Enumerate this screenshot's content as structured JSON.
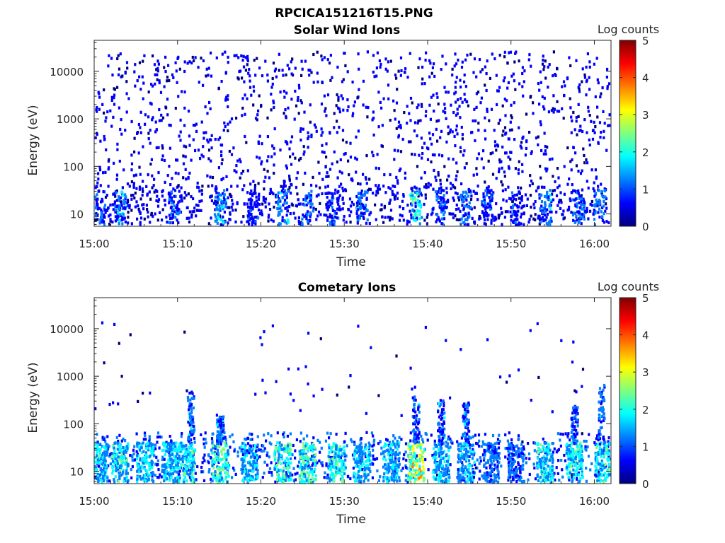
{
  "figure": {
    "title": "RPCICA151216T15.PNG"
  },
  "colormap": [
    "#00007f",
    "#0000ff",
    "#007fff",
    "#00ffff",
    "#7fff7f",
    "#ffff00",
    "#ff7f00",
    "#ff0000",
    "#7f0000"
  ],
  "chart_data": [
    {
      "type": "heatmap",
      "title": "Solar Wind Ions",
      "xlabel": "Time",
      "ylabel": "Energy (eV)",
      "x_range_minutes": [
        0,
        62
      ],
      "x_ticks": [
        {
          "t": 0,
          "label": "15:00"
        },
        {
          "t": 10,
          "label": "15:10"
        },
        {
          "t": 20,
          "label": "15:20"
        },
        {
          "t": 30,
          "label": "15:30"
        },
        {
          "t": 40,
          "label": "15:40"
        },
        {
          "t": 50,
          "label": "15:50"
        },
        {
          "t": 60,
          "label": "16:00"
        }
      ],
      "y_scale": "log",
      "y_range": [
        5.5,
        45000
      ],
      "y_ticks": [
        {
          "v": 10,
          "label": "10"
        },
        {
          "v": 100,
          "label": "100"
        },
        {
          "v": 1000,
          "label": "1000"
        },
        {
          "v": 10000,
          "label": "10000"
        }
      ],
      "colorbar": {
        "label": "Log counts",
        "range": [
          0,
          5
        ],
        "ticks": [
          "0",
          "1",
          "2",
          "3",
          "4",
          "5"
        ]
      },
      "pattern": "sparse counts (log 0–1) at all energies, brighter bursts (log 1–2.5) below ~40 eV",
      "bursts": [
        {
          "t": 0.5,
          "level": 1.3
        },
        {
          "t": 3.0,
          "level": 1.6
        },
        {
          "t": 9.5,
          "level": 1.1
        },
        {
          "t": 15.0,
          "level": 1.8
        },
        {
          "t": 19.0,
          "level": 1.0
        },
        {
          "t": 22.5,
          "level": 1.7
        },
        {
          "t": 25.5,
          "level": 1.5
        },
        {
          "t": 28.5,
          "level": 1.1
        },
        {
          "t": 32.0,
          "level": 1.6
        },
        {
          "t": 38.5,
          "level": 2.4
        },
        {
          "t": 41.5,
          "level": 1.2
        },
        {
          "t": 44.5,
          "level": 1.3
        },
        {
          "t": 47.0,
          "level": 1.1
        },
        {
          "t": 50.5,
          "level": 1.0
        },
        {
          "t": 54.0,
          "level": 1.6
        },
        {
          "t": 58.0,
          "level": 1.4
        },
        {
          "t": 60.5,
          "level": 1.5
        }
      ]
    },
    {
      "type": "heatmap",
      "title": "Cometary Ions",
      "xlabel": "Time",
      "ylabel": "Energy (eV)",
      "x_range_minutes": [
        0,
        62
      ],
      "x_ticks": [
        {
          "t": 0,
          "label": "15:00"
        },
        {
          "t": 10,
          "label": "15:10"
        },
        {
          "t": 20,
          "label": "15:20"
        },
        {
          "t": 30,
          "label": "15:30"
        },
        {
          "t": 40,
          "label": "15:40"
        },
        {
          "t": 50,
          "label": "15:50"
        },
        {
          "t": 60,
          "label": "16:00"
        }
      ],
      "y_scale": "log",
      "y_range": [
        5.5,
        45000
      ],
      "y_ticks": [
        {
          "v": 10,
          "label": "10"
        },
        {
          "v": 100,
          "label": "100"
        },
        {
          "v": 1000,
          "label": "1000"
        },
        {
          "v": 10000,
          "label": "10000"
        }
      ],
      "colorbar": {
        "label": "Log counts",
        "range": [
          0,
          5
        ],
        "ticks": [
          "0",
          "1",
          "2",
          "3",
          "4",
          "5"
        ]
      },
      "pattern": "strong bands (log 1–3.5) between 6 and 45 eV with repeated bursts, plumes up to ~600 eV, very sparse above",
      "bursts": [
        {
          "t": 0.5,
          "level": 2.3
        },
        {
          "t": 3.0,
          "level": 2.4
        },
        {
          "t": 6.0,
          "level": 2.2
        },
        {
          "t": 9.0,
          "level": 2.1
        },
        {
          "t": 11.0,
          "level": 2.3
        },
        {
          "t": 15.0,
          "level": 2.6
        },
        {
          "t": 18.5,
          "level": 2.0
        },
        {
          "t": 22.5,
          "level": 2.6
        },
        {
          "t": 25.5,
          "level": 2.7
        },
        {
          "t": 29.0,
          "level": 2.6
        },
        {
          "t": 32.0,
          "level": 2.2
        },
        {
          "t": 35.5,
          "level": 2.0
        },
        {
          "t": 38.5,
          "level": 3.6
        },
        {
          "t": 41.5,
          "level": 2.0
        },
        {
          "t": 44.5,
          "level": 1.8
        },
        {
          "t": 47.5,
          "level": 1.5
        },
        {
          "t": 50.5,
          "level": 1.5
        },
        {
          "t": 54.0,
          "level": 2.3
        },
        {
          "t": 57.5,
          "level": 2.5
        },
        {
          "t": 61.0,
          "level": 2.3
        }
      ],
      "plumes": [
        {
          "t": 11.5,
          "top_ev": 500
        },
        {
          "t": 15.0,
          "top_ev": 150
        },
        {
          "t": 38.5,
          "top_ev": 400
        },
        {
          "t": 41.5,
          "top_ev": 350
        },
        {
          "t": 44.5,
          "top_ev": 300
        },
        {
          "t": 57.5,
          "top_ev": 250
        },
        {
          "t": 60.8,
          "top_ev": 700
        }
      ]
    }
  ]
}
